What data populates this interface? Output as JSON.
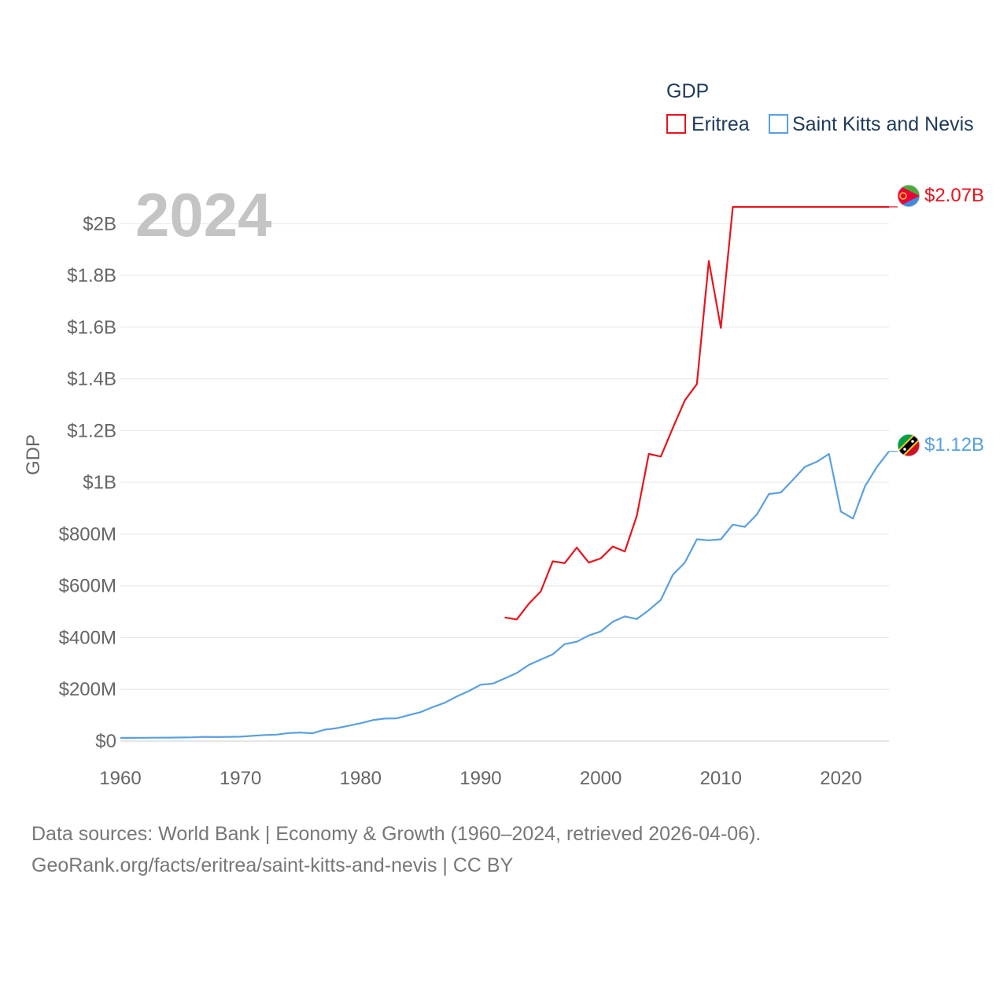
{
  "colors": {
    "eritrea": "#e8141c",
    "skn": "#5aa0e0",
    "grid": "#e6e6e6",
    "axis": "#cccccc"
  },
  "legend": {
    "title": "GDP",
    "items": [
      {
        "label": "Eritrea",
        "color": "#e8141c"
      },
      {
        "label": "Saint Kitts and Nevis",
        "color": "#5aa0e0"
      }
    ]
  },
  "year_label": "2024",
  "footer": {
    "line1": "Data sources: World Bank | Economy & Growth (1960–2024, retrieved 2026-04-06).",
    "line2": "GeoRank.org/facts/eritrea/saint-kitts-and-nevis | CC BY"
  },
  "chart_data": {
    "type": "line",
    "title": "",
    "xlabel": "",
    "ylabel": "GDP",
    "xlim": [
      1960,
      2024
    ],
    "ylim": [
      0,
      2150000000
    ],
    "x_ticks": [
      1960,
      1970,
      1980,
      1990,
      2000,
      2010,
      2020
    ],
    "x_tick_labels": [
      "1960",
      "1970",
      "1980",
      "1990",
      "2000",
      "2010",
      "2020"
    ],
    "y_ticks": [
      0,
      200000000,
      400000000,
      600000000,
      800000000,
      1000000000,
      1200000000,
      1400000000,
      1600000000,
      1800000000,
      2000000000
    ],
    "y_tick_labels": [
      "$0",
      "$200M",
      "$400M",
      "$600M",
      "$800M",
      "$1B",
      "$1.2B",
      "$1.4B",
      "$1.6B",
      "$1.8B",
      "$2B"
    ],
    "grid": true,
    "legend_position": "top-right",
    "series": [
      {
        "name": "Eritrea",
        "end_label": "$2.07B",
        "icon": "eritrea-flag-icon",
        "x": [
          1992,
          1993,
          1994,
          1995,
          1996,
          1997,
          1998,
          1999,
          2000,
          2001,
          2002,
          2003,
          2004,
          2005,
          2006,
          2007,
          2008,
          2009,
          2010,
          2011,
          2024
        ],
        "values": [
          478000000,
          470000000,
          530000000,
          578000000,
          695000000,
          688000000,
          748000000,
          690000000,
          706000000,
          752000000,
          733000000,
          870000000,
          1110000000,
          1100000000,
          1210000000,
          1317000000,
          1380000000,
          1856000000,
          1597000000,
          2065000000,
          2065000000
        ]
      },
      {
        "name": "Saint Kitts and Nevis",
        "end_label": "$1.12B",
        "icon": "saint-kitts-and-nevis-flag-icon",
        "x": [
          1960,
          1961,
          1962,
          1963,
          1964,
          1965,
          1966,
          1967,
          1968,
          1969,
          1970,
          1971,
          1972,
          1973,
          1974,
          1975,
          1976,
          1977,
          1978,
          1979,
          1980,
          1981,
          1982,
          1983,
          1984,
          1985,
          1986,
          1987,
          1988,
          1989,
          1990,
          1991,
          1992,
          1993,
          1994,
          1995,
          1996,
          1997,
          1998,
          1999,
          2000,
          2001,
          2002,
          2003,
          2004,
          2005,
          2006,
          2007,
          2008,
          2009,
          2010,
          2011,
          2012,
          2013,
          2014,
          2015,
          2016,
          2017,
          2018,
          2019,
          2020,
          2021,
          2022,
          2023,
          2024
        ],
        "values": [
          12400000,
          12500000,
          12700000,
          13000000,
          13500000,
          14000000,
          14500000,
          16500000,
          15500000,
          16500000,
          17000000,
          20500000,
          23500000,
          25000000,
          31000000,
          33000000,
          30000000,
          44000000,
          50000000,
          59000000,
          69000000,
          81000000,
          87000000,
          88000000,
          100000000,
          112000000,
          131000000,
          148000000,
          172000000,
          193000000,
          218000000,
          222000000,
          242000000,
          263000000,
          294000000,
          315000000,
          335000000,
          375000000,
          384000000,
          408000000,
          424000000,
          461000000,
          482000000,
          472000000,
          506000000,
          546000000,
          643000000,
          690000000,
          780000000,
          776000000,
          780000000,
          837000000,
          828000000,
          876000000,
          955000000,
          961000000,
          1010000000,
          1060000000,
          1080000000,
          1110000000,
          887000000,
          860000000,
          985000000,
          1060000000,
          1120000000
        ]
      }
    ]
  }
}
